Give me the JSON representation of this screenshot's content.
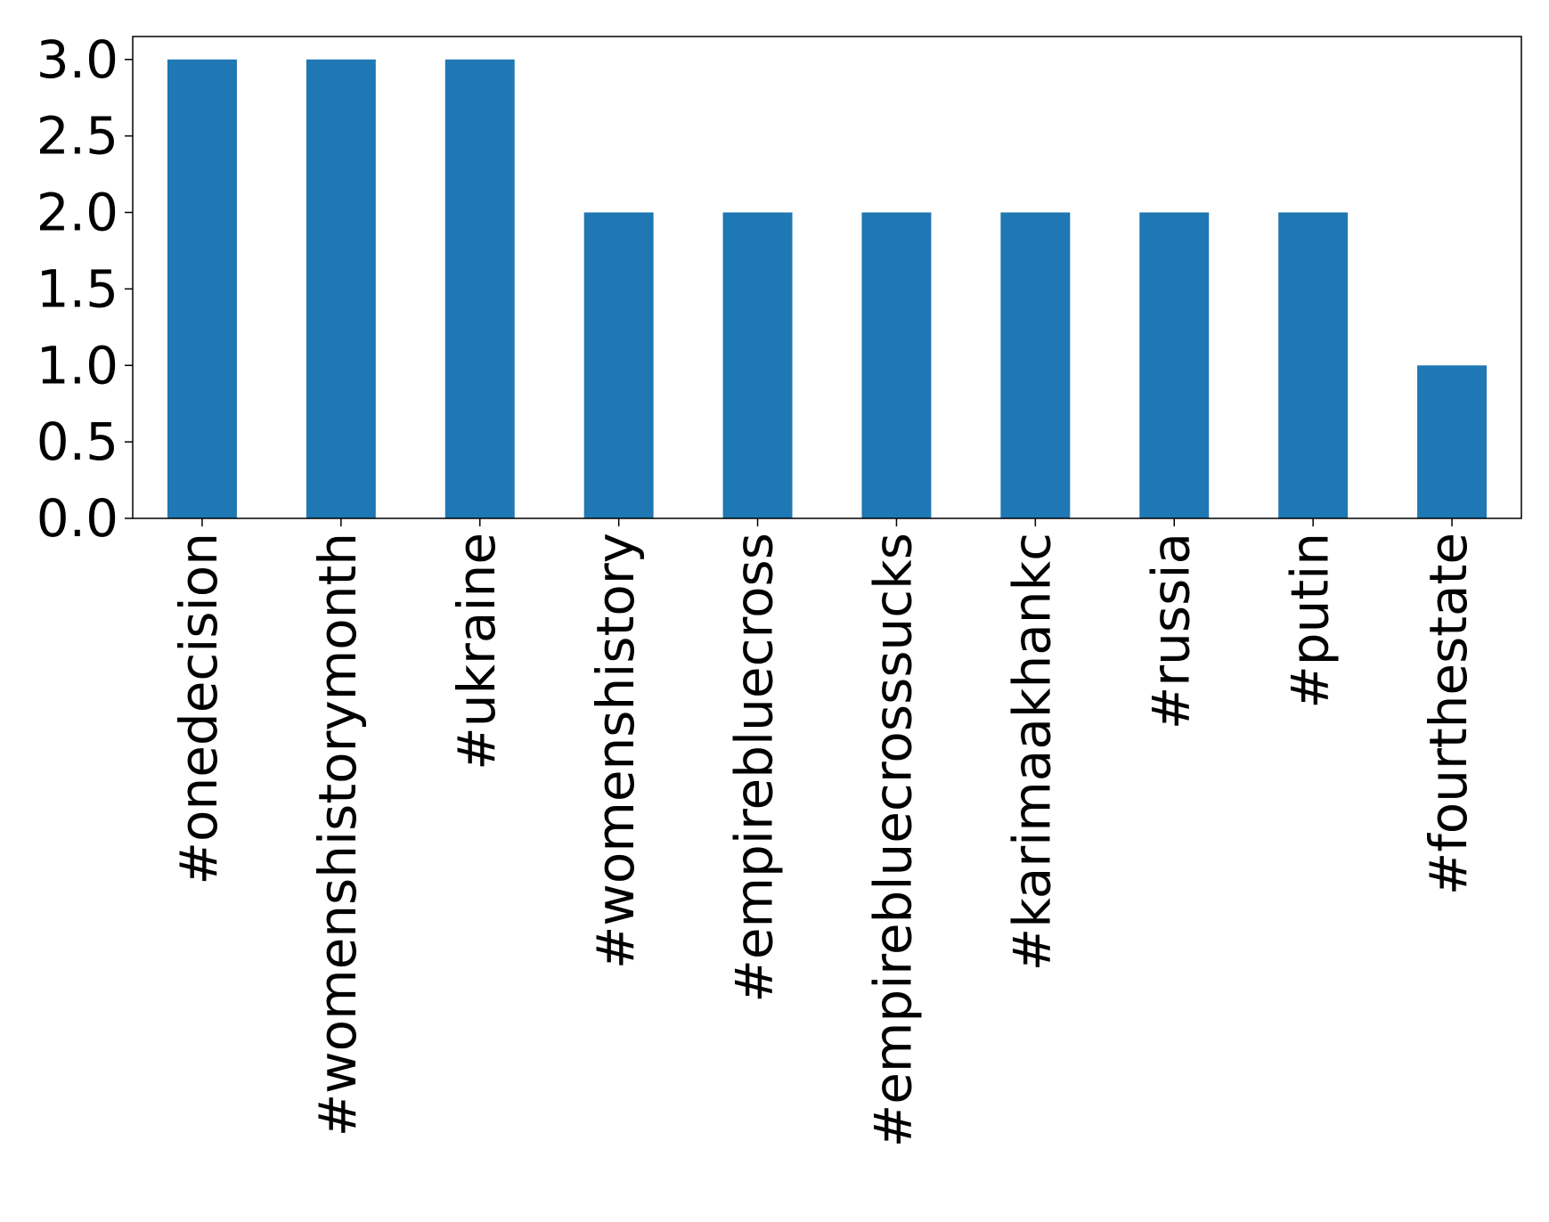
{
  "chart_data": {
    "type": "bar",
    "categories": [
      "#onedecision",
      "#womenshistorymonth",
      "#ukraine",
      "#womenshistory",
      "#empirebluecross",
      "#empirebluecrosssucks",
      "#karimaakhankc",
      "#russia",
      "#putin",
      "#fourthestate"
    ],
    "values": [
      3,
      3,
      3,
      2,
      2,
      2,
      2,
      2,
      2,
      1
    ],
    "color": "#1f77b4",
    "ylim": [
      0,
      3.15
    ],
    "yticks": [
      {
        "value": 0,
        "label": "0.0"
      },
      0.5,
      {
        "value": 1,
        "label": "1.0"
      },
      1.5,
      {
        "value": 2,
        "label": "2.0"
      },
      2.5,
      {
        "value": 3,
        "label": "3.0"
      }
    ],
    "grid": false
  }
}
